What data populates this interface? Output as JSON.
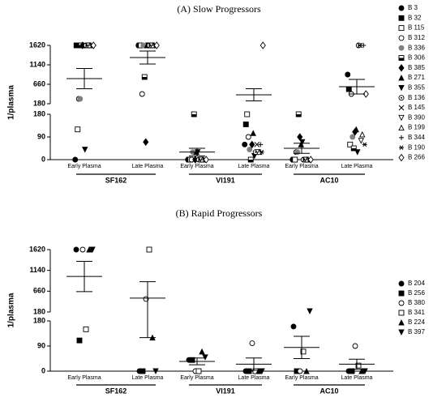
{
  "chart_data": [
    {
      "type": "dot",
      "title": "(A) Slow Progressors",
      "ylabel": "1/plasma",
      "categories": [
        "Early Plasma",
        "Late Plasma",
        "Early Plasma",
        "Late Plasma",
        "Early Plasma",
        "Late Plasma"
      ],
      "groups": [
        "SF162",
        "VI191",
        "AC10"
      ],
      "ylim_lower": [
        0,
        180
      ],
      "yticks_lower": [
        0,
        90,
        180
      ],
      "ylim_upper": [
        180,
        1620
      ],
      "yticks_upper": [
        180,
        660,
        1140,
        1620
      ],
      "means": [
        800,
        1320,
        30,
        400,
        45,
        600
      ],
      "sem": [
        250,
        160,
        15,
        150,
        20,
        180
      ],
      "series": [
        {
          "name": "B 3",
          "marker": "circle",
          "color": "#000",
          "values": [
            0,
            1620,
            0,
            60,
            0,
            900
          ]
        },
        {
          "name": "B 32",
          "marker": "square",
          "color": "#000",
          "values": [
            1620,
            1620,
            0,
            140,
            0,
            540
          ]
        },
        {
          "name": "B 115",
          "marker": "square-open",
          "color": "#000",
          "values": [
            120,
            1620,
            0,
            180,
            0,
            60
          ]
        },
        {
          "name": "B 312",
          "marker": "circle-open",
          "color": "#000",
          "values": [
            300,
            420,
            0,
            90,
            30,
            420
          ]
        },
        {
          "name": "B 336",
          "marker": "circle",
          "color": "#808080",
          "values": [
            300,
            1620,
            30,
            40,
            30,
            90
          ]
        },
        {
          "name": "B 306",
          "marker": "square-half",
          "color": "#000",
          "values": [
            1620,
            840,
            180,
            0,
            180,
            45
          ]
        },
        {
          "name": "B 385",
          "marker": "diamond",
          "color": "#000",
          "values": [
            1620,
            70,
            0,
            60,
            90,
            110
          ]
        },
        {
          "name": "B 271",
          "marker": "triangle",
          "color": "#000",
          "values": [
            1620,
            1620,
            30,
            105,
            60,
            120
          ]
        },
        {
          "name": "B 355",
          "marker": "triangle-down",
          "color": "#000",
          "values": [
            40,
            1620,
            30,
            15,
            70,
            30
          ]
        },
        {
          "name": "B 136",
          "marker": "circle-dot",
          "color": "#000",
          "values": [
            1620,
            1620,
            0,
            30,
            0,
            1620
          ]
        },
        {
          "name": "B 145",
          "marker": "cross",
          "color": "#000",
          "values": [
            1620,
            1620,
            0,
            60,
            0,
            1620
          ]
        },
        {
          "name": "B 390",
          "marker": "triangle-down-open",
          "color": "#000",
          "values": [
            1620,
            1620,
            0,
            30,
            0,
            75
          ]
        },
        {
          "name": "B 199",
          "marker": "triangle-open",
          "color": "#000",
          "values": [
            1620,
            1620,
            0,
            30,
            0,
            100
          ]
        },
        {
          "name": "B 344",
          "marker": "plus",
          "color": "#000",
          "values": [
            1620,
            1620,
            0,
            60,
            0,
            1620
          ]
        },
        {
          "name": "B 190",
          "marker": "star",
          "color": "#000",
          "values": [
            1620,
            1620,
            0,
            30,
            0,
            60
          ]
        },
        {
          "name": "B 266",
          "marker": "diamond-open",
          "color": "#000",
          "values": [
            1620,
            1620,
            0,
            1620,
            0,
            420
          ]
        }
      ]
    },
    {
      "type": "dot",
      "title": "(B) Rapid Progressors",
      "ylabel": "1/plasma",
      "categories": [
        "Early Plasma",
        "Late Plasma",
        "Early Plasma",
        "Late Plasma",
        "Early Plasma",
        "Late Plasma"
      ],
      "groups": [
        "SF162",
        "VI191",
        "AC10"
      ],
      "ylim_lower": [
        0,
        180
      ],
      "yticks_lower": [
        0,
        90,
        180
      ],
      "ylim_upper": [
        180,
        1620
      ],
      "yticks_upper": [
        180,
        660,
        1140,
        1620
      ],
      "means": [
        1000,
        500,
        35,
        25,
        85,
        25
      ],
      "sem": [
        350,
        380,
        12,
        22,
        40,
        18
      ],
      "series": [
        {
          "name": "B 204",
          "marker": "circle",
          "color": "#000",
          "values": [
            1620,
            0,
            40,
            0,
            160,
            0
          ]
        },
        {
          "name": "B 256",
          "marker": "square",
          "color": "#000",
          "values": [
            110,
            0,
            40,
            0,
            0,
            0
          ]
        },
        {
          "name": "B 380",
          "marker": "circle-open",
          "color": "#000",
          "values": [
            1620,
            480,
            0,
            100,
            0,
            90
          ]
        },
        {
          "name": "B 341",
          "marker": "square-open",
          "color": "#000",
          "values": [
            150,
            1620,
            0,
            0,
            70,
            20
          ]
        },
        {
          "name": "B 224",
          "marker": "triangle",
          "color": "#000",
          "values": [
            1620,
            120,
            70,
            0,
            0,
            0
          ]
        },
        {
          "name": "B 397",
          "marker": "triangle-down",
          "color": "#000",
          "values": [
            1620,
            0,
            50,
            0,
            200,
            0
          ]
        }
      ]
    }
  ]
}
